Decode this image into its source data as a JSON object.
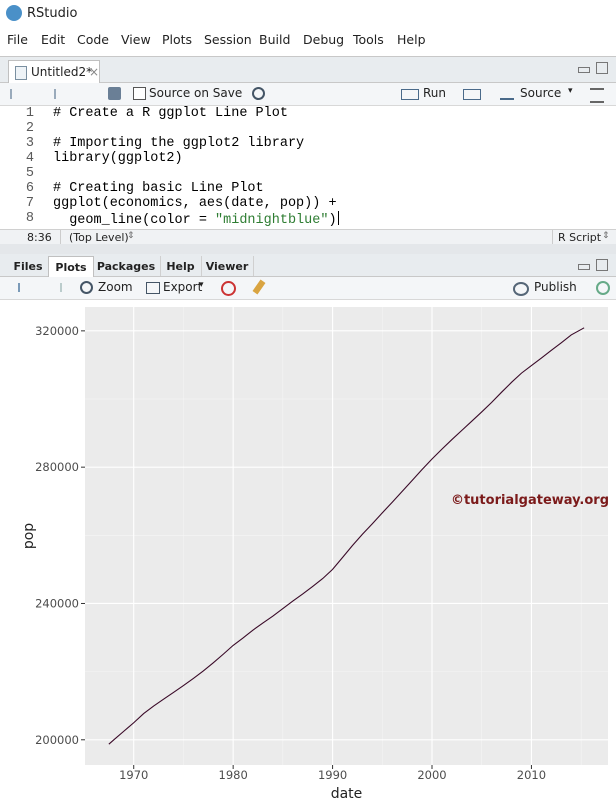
{
  "window": {
    "title": "RStudio"
  },
  "menu": [
    "File",
    "Edit",
    "Code",
    "View",
    "Plots",
    "Session",
    "Build",
    "Debug",
    "Tools",
    "Help"
  ],
  "editor": {
    "tab": "Untitled2*",
    "toolbar": {
      "source_on_save": "Source on Save",
      "run": "Run",
      "source": "Source"
    },
    "lines": [
      {
        "number": 1,
        "code": "# Create a R ggplot Line Plot"
      },
      {
        "number": 2
      },
      {
        "number": 3,
        "code": "# Importing the ggplot2 library"
      },
      {
        "number": 4,
        "code": "library(ggplot2)"
      },
      {
        "number": 5
      },
      {
        "number": 6,
        "code": "# Creating basic Line Plot"
      },
      {
        "number": 7,
        "code": "ggplot(economics, aes(date, pop)) +"
      },
      {
        "number": 8,
        "code": "  geom_line(color = \"midnightblue\")"
      }
    ],
    "status": {
      "position": "8:36",
      "scope": "(Top Level)",
      "file_type": "R Script"
    }
  },
  "plots_pane": {
    "tabs": [
      "Files",
      "Plots",
      "Packages",
      "Help",
      "Viewer"
    ],
    "active_tab": 1,
    "toolbar": {
      "zoom": "Zoom",
      "export": "Export",
      "publish": "Publish"
    }
  },
  "chart_data": {
    "type": "line",
    "x_label": "date",
    "y_label": "pop",
    "annotation": "©tutorialgateway.org",
    "color": "#3a0a28",
    "x": [
      1967.5,
      1968,
      1969,
      1970,
      1971,
      1972,
      1973,
      1974,
      1975,
      1976,
      1977,
      1978,
      1979,
      1980,
      1981,
      1982,
      1983,
      1984,
      1985,
      1986,
      1987,
      1988,
      1989,
      1990,
      1991,
      1992,
      1993,
      1994,
      1995,
      1996,
      1997,
      1998,
      1999,
      2000,
      2001,
      2002,
      2003,
      2004,
      2005,
      2006,
      2007,
      2008,
      2009,
      2010,
      2011,
      2012,
      2013,
      2014,
      2015.3
    ],
    "values": [
      198712,
      200000,
      202500,
      205000,
      207700,
      209900,
      211900,
      213900,
      215900,
      218000,
      220200,
      222600,
      225100,
      227700,
      229900,
      232200,
      234300,
      236300,
      238500,
      240700,
      242800,
      245000,
      247300,
      250000,
      253500,
      257000,
      260300,
      263400,
      266600,
      269700,
      272900,
      276100,
      279300,
      282400,
      285300,
      288100,
      290800,
      293500,
      296200,
      299000,
      302000,
      304900,
      307600,
      309800,
      312000,
      314300,
      316500,
      318800,
      320887
    ],
    "xlim": [
      1965.1,
      2017.7
    ],
    "ylim": [
      192600,
      327000
    ],
    "xticks": [
      1970,
      1980,
      1990,
      2000,
      2010
    ],
    "yticks": [
      200000,
      240000,
      280000,
      320000
    ],
    "minor_xticks": [
      1965,
      1975,
      1985,
      1995,
      2005,
      2015
    ],
    "minor_yticks": [
      220000,
      260000,
      300000
    ],
    "grid": true
  }
}
